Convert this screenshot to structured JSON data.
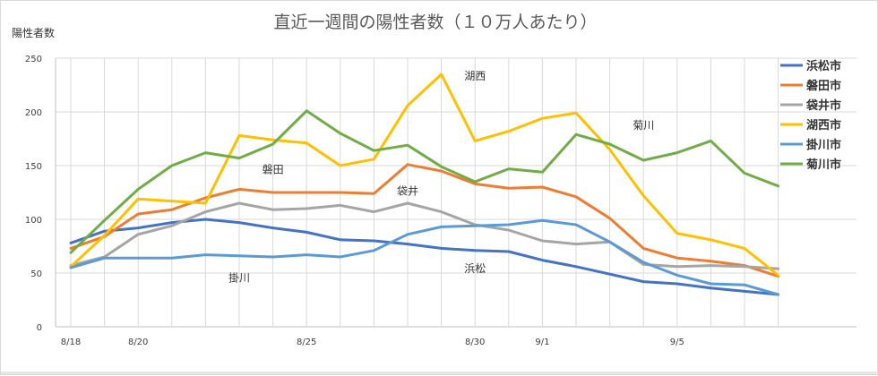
{
  "chart_data": {
    "type": "line",
    "title": "直近一週間の陽性者数（１０万人あたり）",
    "ylabel": "陽性者数",
    "xlabel": "",
    "ylim": [
      0,
      250
    ],
    "yticks": [
      0,
      50,
      100,
      150,
      200,
      250
    ],
    "x": [
      "8/18",
      "8/19",
      "8/20",
      "8/21",
      "8/22",
      "8/23",
      "8/24",
      "8/25",
      "8/26",
      "8/27",
      "8/28",
      "8/29",
      "8/30",
      "8/31",
      "9/1",
      "9/2",
      "9/3",
      "9/4",
      "9/5",
      "9/6",
      "9/7",
      "9/8"
    ],
    "xtick_labels": [
      {
        "index": 0,
        "label": "8/18"
      },
      {
        "index": 2,
        "label": "8/20"
      },
      {
        "index": 7,
        "label": "8/25"
      },
      {
        "index": 12,
        "label": "8/30"
      },
      {
        "index": 14,
        "label": "9/1"
      },
      {
        "index": 18,
        "label": "9/5"
      }
    ],
    "grid": true,
    "legend_position": "right",
    "series": [
      {
        "name": "浜松市",
        "color": "#4472C4",
        "values": [
          78,
          89,
          92,
          97,
          100,
          97,
          92,
          88,
          81,
          80,
          77,
          73,
          71,
          70,
          62,
          56,
          49,
          42,
          40,
          36,
          33,
          30
        ]
      },
      {
        "name": "磐田市",
        "color": "#ED7D31",
        "values": [
          73,
          84,
          105,
          109,
          120,
          128,
          125,
          125,
          125,
          124,
          151,
          145,
          133,
          129,
          130,
          121,
          101,
          73,
          64,
          61,
          57,
          47
        ]
      },
      {
        "name": "袋井市",
        "color": "#A5A5A5",
        "values": [
          57,
          65,
          86,
          94,
          107,
          115,
          109,
          110,
          113,
          107,
          115,
          107,
          95,
          90,
          80,
          77,
          79,
          58,
          56,
          57,
          56,
          54
        ]
      },
      {
        "name": "湖西市",
        "color": "#FFC000",
        "values": [
          56,
          85,
          119,
          117,
          115,
          178,
          174,
          171,
          150,
          156,
          206,
          235,
          173,
          182,
          194,
          199,
          165,
          122,
          87,
          81,
          73,
          48
        ]
      },
      {
        "name": "掛川市",
        "color": "#5B9BD5",
        "values": [
          55,
          64,
          64,
          64,
          67,
          66,
          65,
          67,
          65,
          71,
          86,
          93,
          94,
          95,
          99,
          95,
          79,
          60,
          48,
          40,
          39,
          30
        ]
      },
      {
        "name": "菊川市",
        "color": "#70AD47",
        "values": [
          69,
          99,
          128,
          150,
          162,
          157,
          170,
          201,
          180,
          164,
          169,
          149,
          135,
          147,
          144,
          179,
          170,
          155,
          162,
          173,
          143,
          131
        ]
      }
    ],
    "annotations": [
      {
        "text": "湖西",
        "x": "8/30",
        "y": 230
      },
      {
        "text": "菊川",
        "x": "9/4",
        "y": 184
      },
      {
        "text": "磐田",
        "x": "8/24",
        "y": 143
      },
      {
        "text": "袋井",
        "x": "8/28",
        "y": 123
      },
      {
        "text": "浜松",
        "x": "8/30",
        "y": 51
      },
      {
        "text": "掛川",
        "x": "8/23",
        "y": 42
      }
    ]
  }
}
